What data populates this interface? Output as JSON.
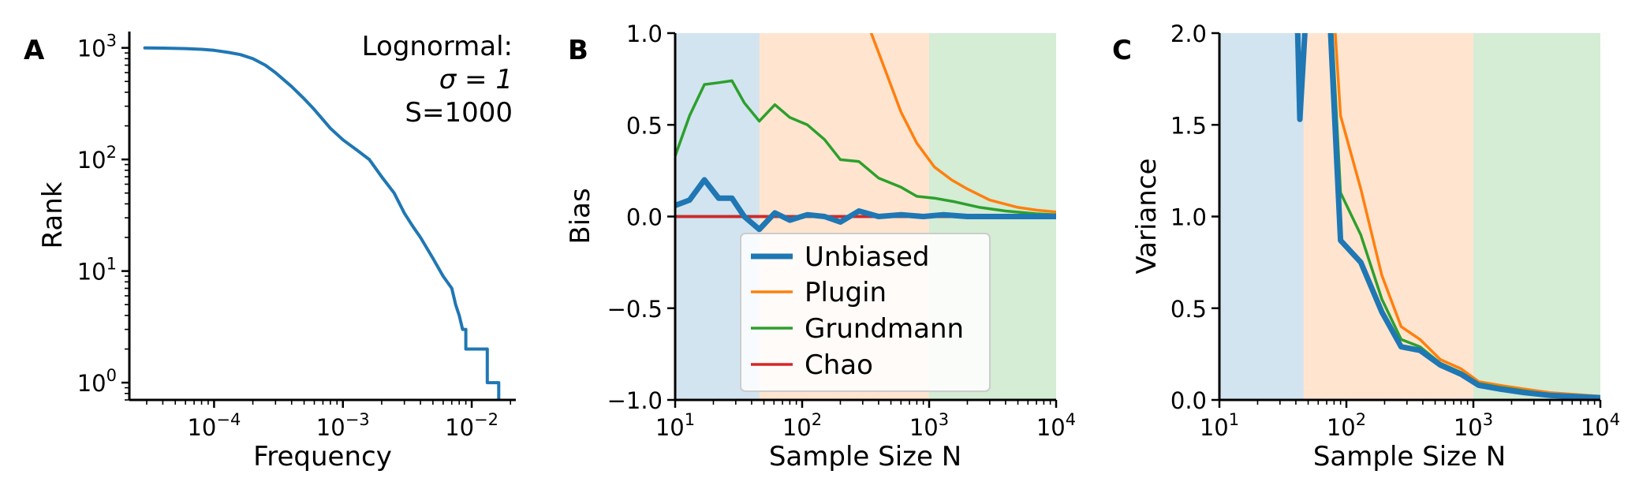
{
  "chart_data": [
    {
      "type": "line",
      "panel": "A",
      "xlabel": "Frequency",
      "ylabel": "Rank",
      "xscale": "log",
      "yscale": "log",
      "xlim": [
        2.2e-05,
        0.022
      ],
      "ylim": [
        0.7,
        1400
      ],
      "xticks": [
        {
          "v": 0.0001,
          "b": "10",
          "e": "−4"
        },
        {
          "v": 0.001,
          "b": "10",
          "e": "−3"
        },
        {
          "v": 0.01,
          "b": "10",
          "e": "−2"
        }
      ],
      "yticks": [
        {
          "v": 1,
          "b": "10",
          "e": "0"
        },
        {
          "v": 10,
          "b": "10",
          "e": "1"
        },
        {
          "v": 100,
          "b": "10",
          "e": "2"
        },
        {
          "v": 1000,
          "b": "10",
          "e": "3"
        }
      ],
      "annotation": [
        "Lognormal:",
        "σ = 1",
        "S=1000"
      ],
      "series": [
        {
          "color": "#1f77b4",
          "points": [
            [
              2.9e-05,
              1000
            ],
            [
              4e-05,
              995
            ],
            [
              6e-05,
              985
            ],
            [
              8e-05,
              970
            ],
            [
              0.0001,
              950
            ],
            [
              0.00013,
              910
            ],
            [
              0.00016,
              870
            ],
            [
              0.0002,
              800
            ],
            [
              0.00025,
              700
            ],
            [
              0.0003,
              600
            ],
            [
              0.0004,
              450
            ],
            [
              0.0005,
              350
            ],
            [
              0.0006,
              280
            ],
            [
              0.0008,
              190
            ],
            [
              0.001,
              150
            ],
            [
              0.0013,
              120
            ],
            [
              0.0016,
              100
            ],
            [
              0.002,
              70
            ],
            [
              0.0025,
              50
            ],
            [
              0.003,
              33
            ],
            [
              0.0035,
              25
            ],
            [
              0.004,
              20
            ],
            [
              0.005,
              13
            ],
            [
              0.006,
              9
            ],
            [
              0.007,
              7
            ],
            [
              0.0075,
              5
            ],
            [
              0.008,
              4
            ],
            [
              0.0085,
              3
            ],
            [
              0.009,
              3
            ],
            [
              0.009,
              2
            ],
            [
              0.0132,
              2
            ],
            [
              0.0132,
              1
            ],
            [
              0.0162,
              1
            ],
            [
              0.0162,
              0.7
            ]
          ]
        }
      ]
    },
    {
      "type": "line",
      "panel": "B",
      "xlabel": "Sample Size N",
      "ylabel": "Bias",
      "xscale": "log",
      "xlim": [
        10,
        10000
      ],
      "ylim": [
        -1.0,
        1.0
      ],
      "xticks": [
        {
          "v": 10,
          "b": "10",
          "e": "1"
        },
        {
          "v": 100,
          "b": "10",
          "e": "2"
        },
        {
          "v": 1000,
          "b": "10",
          "e": "3"
        },
        {
          "v": 10000,
          "b": "10",
          "e": "4"
        }
      ],
      "yticks": [
        {
          "v": -1.0,
          "t": "−1.0"
        },
        {
          "v": -0.5,
          "t": "−0.5"
        },
        {
          "v": 0.0,
          "t": "0.0"
        },
        {
          "v": 0.5,
          "t": "0.5"
        },
        {
          "v": 1.0,
          "t": "1.0"
        }
      ],
      "regions": [
        {
          "from": 10,
          "to": 46,
          "color": "#1f77b4"
        },
        {
          "from": 46,
          "to": 1000,
          "color": "#ff7f0e"
        },
        {
          "from": 1000,
          "to": 10000,
          "color": "#2ca02c"
        }
      ],
      "hline": 0,
      "legend": [
        "Unbiased",
        "Plugin",
        "Grundmann",
        "Chao"
      ],
      "legend_loc": "lower center",
      "series": [
        {
          "name": "Plugin",
          "color": "#ff7f0e",
          "width": 3.5,
          "points": [
            [
              300,
              1.2
            ],
            [
              350,
              1.0
            ],
            [
              450,
              0.8
            ],
            [
              600,
              0.57
            ],
            [
              800,
              0.4
            ],
            [
              1100,
              0.27
            ],
            [
              1500,
              0.2
            ],
            [
              2000,
              0.15
            ],
            [
              3000,
              0.09
            ],
            [
              5000,
              0.05
            ],
            [
              7000,
              0.035
            ],
            [
              10000,
              0.025
            ]
          ]
        },
        {
          "name": "Grundmann",
          "color": "#2ca02c",
          "width": 3.5,
          "points": [
            [
              10,
              0.33
            ],
            [
              13,
              0.55
            ],
            [
              17,
              0.72
            ],
            [
              22,
              0.73
            ],
            [
              28,
              0.74
            ],
            [
              35,
              0.62
            ],
            [
              46,
              0.52
            ],
            [
              61,
              0.61
            ],
            [
              80,
              0.54
            ],
            [
              110,
              0.5
            ],
            [
              150,
              0.42
            ],
            [
              200,
              0.31
            ],
            [
              280,
              0.3
            ],
            [
              400,
              0.21
            ],
            [
              600,
              0.16
            ],
            [
              800,
              0.11
            ],
            [
              1100,
              0.1
            ],
            [
              1600,
              0.08
            ],
            [
              2500,
              0.05
            ],
            [
              4000,
              0.03
            ],
            [
              7000,
              0.015
            ],
            [
              10000,
              0.01
            ]
          ]
        },
        {
          "name": "Chao",
          "color": "#d62728",
          "width": 3.5,
          "points": [
            [
              10,
              0.0
            ],
            [
              10000,
              0.0
            ]
          ]
        },
        {
          "name": "Unbiased",
          "color": "#1f77b4",
          "width": 7,
          "points": [
            [
              10,
              0.06
            ],
            [
              13,
              0.09
            ],
            [
              17,
              0.2
            ],
            [
              22,
              0.1
            ],
            [
              28,
              0.1
            ],
            [
              35,
              0.0
            ],
            [
              46,
              -0.07
            ],
            [
              61,
              0.02
            ],
            [
              80,
              -0.02
            ],
            [
              110,
              0.01
            ],
            [
              150,
              0.0
            ],
            [
              200,
              -0.03
            ],
            [
              280,
              0.03
            ],
            [
              400,
              0.0
            ],
            [
              600,
              0.01
            ],
            [
              900,
              0.0
            ],
            [
              1300,
              0.01
            ],
            [
              2000,
              0.0
            ],
            [
              4000,
              0.0
            ],
            [
              7000,
              0.0
            ],
            [
              10000,
              0.0
            ]
          ]
        }
      ]
    },
    {
      "type": "line",
      "panel": "C",
      "xlabel": "Sample Size N",
      "ylabel": "Variance",
      "xscale": "log",
      "xlim": [
        10,
        10000
      ],
      "ylim": [
        0.0,
        2.0
      ],
      "xticks": [
        {
          "v": 10,
          "b": "10",
          "e": "1"
        },
        {
          "v": 100,
          "b": "10",
          "e": "2"
        },
        {
          "v": 1000,
          "b": "10",
          "e": "3"
        },
        {
          "v": 10000,
          "b": "10",
          "e": "4"
        }
      ],
      "yticks": [
        {
          "v": 0.0,
          "t": "0.0"
        },
        {
          "v": 0.5,
          "t": "0.5"
        },
        {
          "v": 1.0,
          "t": "1.0"
        },
        {
          "v": 1.5,
          "t": "1.5"
        },
        {
          "v": 2.0,
          "t": "2.0"
        }
      ],
      "regions": [
        {
          "from": 10,
          "to": 46,
          "color": "#1f77b4"
        },
        {
          "from": 46,
          "to": 1000,
          "color": "#ff7f0e"
        },
        {
          "from": 1000,
          "to": 10000,
          "color": "#2ca02c"
        }
      ],
      "series": [
        {
          "name": "Plugin",
          "color": "#ff7f0e",
          "width": 3.5,
          "points": [
            [
              80,
              2.1
            ],
            [
              90,
              1.55
            ],
            [
              130,
              1.15
            ],
            [
              190,
              0.68
            ],
            [
              270,
              0.4
            ],
            [
              380,
              0.33
            ],
            [
              550,
              0.22
            ],
            [
              800,
              0.17
            ],
            [
              1100,
              0.1
            ],
            [
              1600,
              0.08
            ],
            [
              2500,
              0.06
            ],
            [
              4000,
              0.04
            ],
            [
              10000,
              0.02
            ]
          ]
        },
        {
          "name": "Grundmann",
          "color": "#2ca02c",
          "width": 3.5,
          "points": [
            [
              76,
              2.1
            ],
            [
              90,
              1.13
            ],
            [
              130,
              0.9
            ],
            [
              190,
              0.55
            ],
            [
              270,
              0.33
            ],
            [
              380,
              0.29
            ],
            [
              550,
              0.2
            ],
            [
              800,
              0.15
            ],
            [
              1100,
              0.09
            ],
            [
              1600,
              0.07
            ],
            [
              2500,
              0.05
            ],
            [
              4000,
              0.03
            ],
            [
              10000,
              0.015
            ]
          ]
        },
        {
          "name": "Unbiased",
          "color": "#1f77b4",
          "width": 7,
          "points": [
            [
              41,
              2.1
            ],
            [
              43,
              1.53
            ],
            [
              48,
              2.1
            ],
            [
              74,
              2.1
            ],
            [
              90,
              0.87
            ],
            [
              130,
              0.75
            ],
            [
              190,
              0.48
            ],
            [
              270,
              0.29
            ],
            [
              380,
              0.27
            ],
            [
              550,
              0.19
            ],
            [
              800,
              0.14
            ],
            [
              1100,
              0.08
            ],
            [
              1600,
              0.06
            ],
            [
              2500,
              0.04
            ],
            [
              4000,
              0.025
            ],
            [
              10000,
              0.012
            ]
          ]
        }
      ]
    }
  ]
}
